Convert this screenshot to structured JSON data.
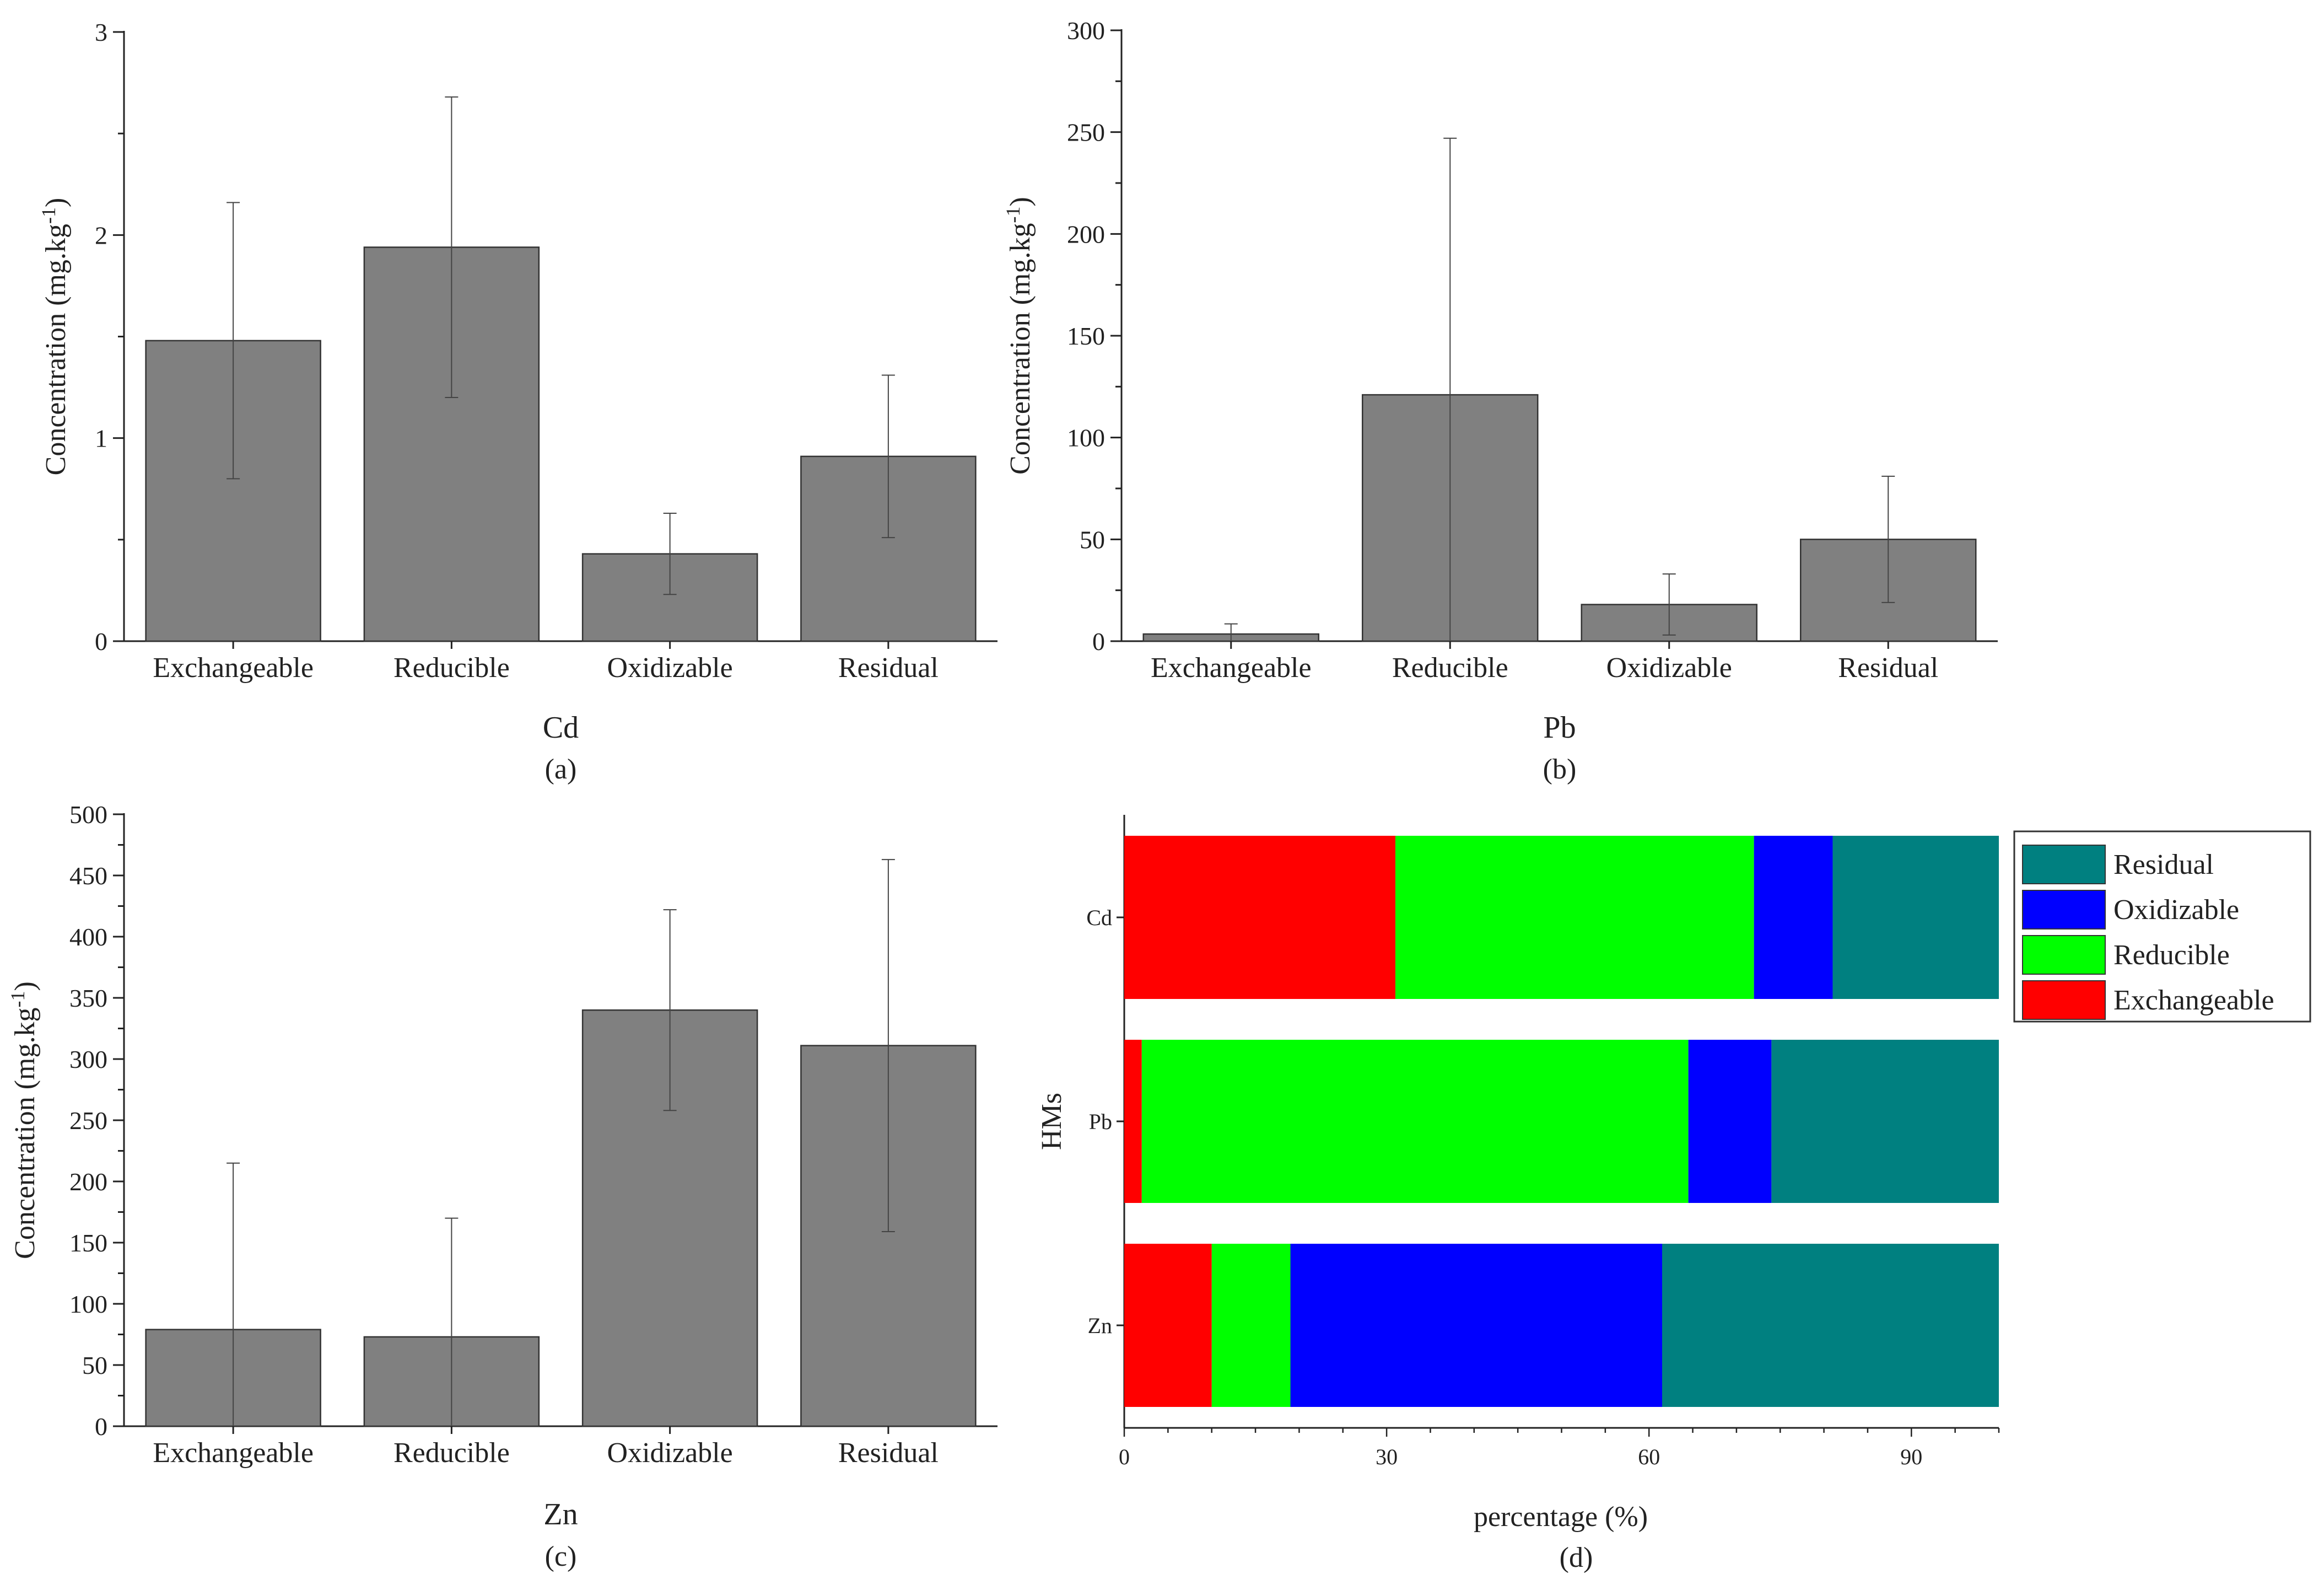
{
  "colors": {
    "bar": "#808080",
    "axis": "#222222",
    "error": "#444444",
    "Exchangeable": "#ff0000",
    "Reducible": "#00ff00",
    "Oxidizable": "#0000ff",
    "Residual": "#008080"
  },
  "chart_data": [
    {
      "type": "bar",
      "panel": "(a)",
      "element": "Cd",
      "ylabel": "Concentration (mg.kg",
      "ylabel_sup": "-1",
      "ylabel_end": ")",
      "ylim": [
        0,
        3
      ],
      "yticks": [
        0,
        1,
        2,
        3
      ],
      "categories": [
        "Exchangeable",
        "Reducible",
        "Oxidizable",
        "Residual"
      ],
      "values": [
        1.48,
        1.94,
        0.43,
        0.91
      ],
      "errors": [
        0.68,
        0.74,
        0.2,
        0.4
      ]
    },
    {
      "type": "bar",
      "panel": "(b)",
      "element": "Pb",
      "ylabel": "Concentration (mg.kg",
      "ylabel_sup": "-1",
      "ylabel_end": ")",
      "ylim": [
        0,
        300
      ],
      "yticks": [
        0,
        50,
        100,
        150,
        200,
        250,
        300
      ],
      "categories": [
        "Exchangeable",
        "Reducible",
        "Oxidizable",
        "Residual"
      ],
      "values": [
        3.5,
        121,
        18,
        50
      ],
      "errors": [
        5,
        126,
        15,
        31
      ]
    },
    {
      "type": "bar",
      "panel": "(c)",
      "element": "Zn",
      "ylabel": "Concentration (mg.kg",
      "ylabel_sup": "-1",
      "ylabel_end": ")",
      "ylim": [
        0,
        500
      ],
      "yticks": [
        0,
        50,
        100,
        150,
        200,
        250,
        300,
        350,
        400,
        450,
        500
      ],
      "categories": [
        "Exchangeable",
        "Reducible",
        "Oxidizable",
        "Residual"
      ],
      "values": [
        79,
        73,
        340,
        311
      ],
      "errors": [
        136,
        97,
        82,
        152
      ]
    },
    {
      "type": "bar",
      "orientation": "horizontal-stacked",
      "panel": "(d)",
      "xlabel": "percentage (%)",
      "ylabel": "HMs",
      "xlim": [
        0,
        100
      ],
      "xticks": [
        0,
        30,
        60,
        90
      ],
      "categories": [
        "Cd",
        "Pb",
        "Zn"
      ],
      "series": [
        {
          "name": "Exchangeable",
          "values": [
            31,
            2,
            10
          ]
        },
        {
          "name": "Reducible",
          "values": [
            41,
            62.5,
            9
          ]
        },
        {
          "name": "Oxidizable",
          "values": [
            9,
            9.5,
            42.5
          ]
        },
        {
          "name": "Residual",
          "values": [
            19,
            26,
            38.5
          ]
        }
      ],
      "legend": [
        "Residual",
        "Oxidizable",
        "Reducible",
        "Exchangeable"
      ],
      "legend_position": "top-right"
    }
  ]
}
